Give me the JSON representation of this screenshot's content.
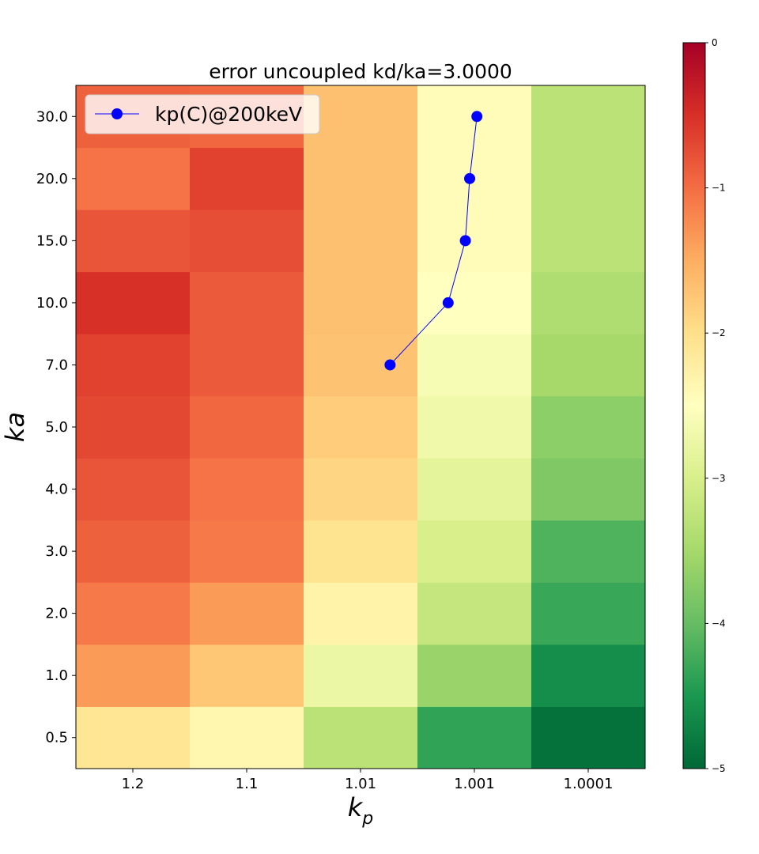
{
  "chart_data": {
    "type": "heatmap",
    "title": "error uncoupled kd/ka=3.0000",
    "xlabel": {
      "base": "k",
      "sub": "p"
    },
    "ylabel": "ka",
    "x_categories": [
      "1.2",
      "1.1",
      "1.01",
      "1.001",
      "1.0001"
    ],
    "y_categories": [
      "0.5",
      "1.0",
      "2.0",
      "3.0",
      "4.0",
      "5.0",
      "7.0",
      "10.0",
      "15.0",
      "20.0",
      "30.0"
    ],
    "z_log10_values_rows_bottom_to_top": [
      [
        -2.1,
        -2.35,
        -3.3,
        -4.35,
        -4.9
      ],
      [
        -1.35,
        -1.75,
        -2.75,
        -3.6,
        -4.6
      ],
      [
        -1.1,
        -1.35,
        -2.3,
        -3.2,
        -4.3
      ],
      [
        -0.9,
        -1.1,
        -2.05,
        -3.0,
        -4.15
      ],
      [
        -0.8,
        -1.05,
        -1.9,
        -2.85,
        -3.8
      ],
      [
        -0.7,
        -0.95,
        -1.8,
        -2.7,
        -3.7
      ],
      [
        -0.65,
        -0.85,
        -1.7,
        -2.6,
        -3.5
      ],
      [
        -0.5,
        -0.85,
        -1.68,
        -2.5,
        -3.4
      ],
      [
        -0.8,
        -0.75,
        -1.68,
        -2.45,
        -3.3
      ],
      [
        -1.05,
        -0.65,
        -1.68,
        -2.45,
        -3.3
      ],
      [
        -0.9,
        -0.95,
        -1.68,
        -2.45,
        -3.3
      ]
    ],
    "colorbar": {
      "colormap": "RdYlGn_r",
      "min": -5,
      "max": 0,
      "ticks": [
        "0",
        "−1",
        "−2",
        "−3",
        "−4",
        "−5"
      ]
    },
    "series": [
      {
        "name": "kp(C)@200keV",
        "color": "#0000ff",
        "points": [
          {
            "ka": "7.0",
            "kp": 1.0055
          },
          {
            "ka": "10.0",
            "kp": 1.0017
          },
          {
            "ka": "15.0",
            "kp": 1.0012
          },
          {
            "ka": "20.0",
            "kp": 1.0011
          },
          {
            "ka": "30.0",
            "kp": 1.00095
          }
        ]
      }
    ],
    "legend_position": "upper-left"
  }
}
